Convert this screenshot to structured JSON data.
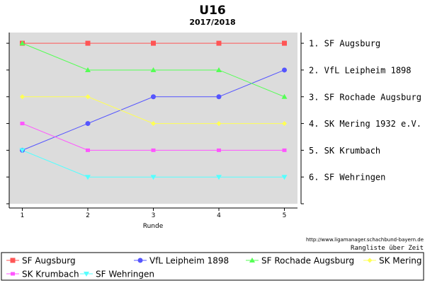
{
  "chart_data": {
    "type": "line",
    "title": "U16",
    "subtitle": "2017/2018",
    "xlabel": "Runde",
    "ylabel": "",
    "x": [
      1,
      2,
      3,
      4,
      5
    ],
    "ylim": [
      0.6,
      7.0
    ],
    "y_inverted": true,
    "grid": false,
    "legend_placement": "bottom",
    "rank_labels": [
      "1. SF Augsburg",
      "2. VfL Leipheim 1898",
      "3. SF Rochade Augsburg",
      "4. SK Mering 1932 e.V.",
      "5. SK Krumbach",
      "6. SF Wehringen"
    ],
    "series": [
      {
        "name": "SF Augsburg",
        "values": [
          1,
          1,
          1,
          1,
          1
        ],
        "color": "#ff5555",
        "marker": "square"
      },
      {
        "name": "VfL Leipheim 1898",
        "values": [
          5,
          4,
          3,
          3,
          2
        ],
        "color": "#5555ff",
        "marker": "circle"
      },
      {
        "name": "SF Rochade Augsburg",
        "values": [
          1,
          2,
          2,
          2,
          3
        ],
        "color": "#55ff55",
        "marker": "triangle-up"
      },
      {
        "name": "SK Mering 1932 e.V.",
        "values": [
          3,
          3,
          4,
          4,
          4
        ],
        "color": "#ffff55",
        "marker": "diamond"
      },
      {
        "name": "SK Krumbach",
        "values": [
          4,
          5,
          5,
          5,
          5
        ],
        "color": "#ff55ff",
        "marker": "square-small"
      },
      {
        "name": "SF Wehringen",
        "values": [
          5,
          6,
          6,
          6,
          6
        ],
        "color": "#55ffff",
        "marker": "triangle-down"
      }
    ]
  },
  "footer": {
    "url": "http://www.ligamanager.schachbund-bayern.de",
    "caption": "Rangliste über Zeit"
  },
  "colors": {
    "plot_background": "#dcdcdc",
    "axis": "#000000"
  }
}
